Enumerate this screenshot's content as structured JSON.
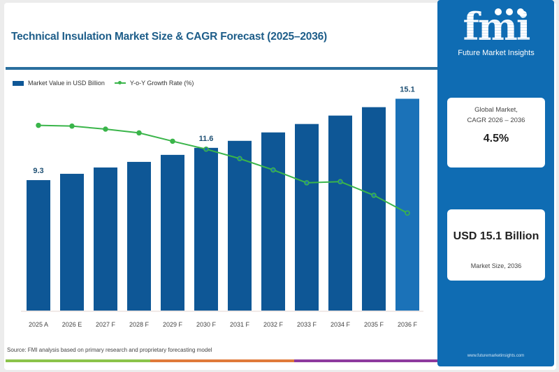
{
  "title": "Technical Insulation Market Size & CAGR Forecast (2025–2036)",
  "legend": {
    "bars": "Market Value in USD Billion",
    "line": "Y-o-Y Growth Rate (%)"
  },
  "source": "Source: FMI analysis based on primary research and proprietary forecasting model",
  "colors": {
    "bar": "#0e5796",
    "bar_highlight": "#1b72b8",
    "line": "#3ab54a",
    "title": "#1d5d89",
    "panel": "#0f6cb3",
    "stripe": [
      "#8bc34a",
      "#e07a3a",
      "#8e3a9e"
    ]
  },
  "side_panel": {
    "logo_text": "fmi",
    "logo_subtitle": "Future Market Insights",
    "cagr_label_line1": "Global Market,",
    "cagr_label_line2": "CAGR 2026 – 2036",
    "cagr_value": "4.5%",
    "size_value": "USD 15.1 Billion",
    "size_label": "Market Size, 2036",
    "website": "www.futuremarketinsights.com"
  },
  "chart_data": {
    "type": "bar",
    "title": "Technical Insulation Market Size & CAGR Forecast (2025–2036)",
    "categories": [
      "2025 A",
      "2026 E",
      "2027 F",
      "2028 F",
      "2029 F",
      "2030 F",
      "2031 F",
      "2032 F",
      "2033 F",
      "2034 F",
      "2035 F",
      "2036 F"
    ],
    "series": [
      {
        "name": "Market Value in USD Billion",
        "type": "bar",
        "values": [
          9.3,
          9.75,
          10.2,
          10.6,
          11.1,
          11.6,
          12.1,
          12.7,
          13.3,
          13.9,
          14.5,
          15.1
        ]
      },
      {
        "name": "Y-o-Y Growth Rate (%)",
        "type": "line",
        "values": [
          4.9,
          4.88,
          4.8,
          4.7,
          4.48,
          4.27,
          4.02,
          3.72,
          3.38,
          3.41,
          3.05,
          2.58
        ]
      }
    ],
    "data_labels": [
      {
        "category": "2025 A",
        "text": "9.3"
      },
      {
        "category": "2030 F",
        "text": "11.6"
      },
      {
        "category": "2036 F",
        "text": "15.1"
      }
    ],
    "ylim": [
      0,
      16
    ],
    "line_ylim": [
      0,
      6
    ],
    "xlabel": "",
    "ylabel": "",
    "grid": false,
    "legend_position": "top-left"
  }
}
